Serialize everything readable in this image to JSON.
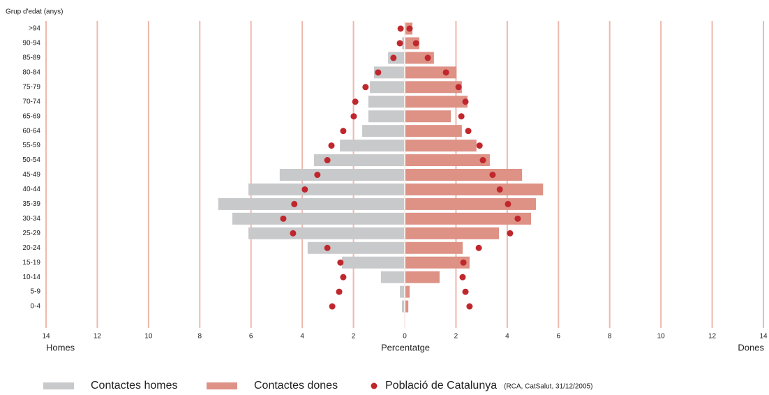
{
  "chart_data": {
    "type": "pyramid",
    "y_axis_label": "Grup d'edat (anys)",
    "x_axis_label": "Percentatge",
    "left_label": "Homes",
    "right_label": "Dones",
    "note": "(RCA, CatSalut, 31/12/2005)",
    "categories": [
      ">94",
      "90-94",
      "85-89",
      "80-84",
      "75-79",
      "70-74",
      "65-69",
      "60-64",
      "55-59",
      "50-54",
      "45-49",
      "40-44",
      "35-39",
      "30-34",
      "25-29",
      "20-24",
      "15-19",
      "10-14",
      "5-9",
      "0-4"
    ],
    "series": [
      {
        "name": "Contactes homes",
        "color": "#c8c9cb",
        "mark": "bar",
        "values": [
          0,
          -0.1,
          -0.65,
          -1.2,
          -1.36,
          -1.42,
          -1.42,
          -1.66,
          -2.53,
          -3.54,
          -4.88,
          -6.1,
          -7.28,
          -6.73,
          -6.1,
          -3.79,
          -2.45,
          -0.93,
          -0.19,
          -0.11
        ]
      },
      {
        "name": "Contactes dones",
        "color": "#de9185",
        "mark": "bar",
        "values": [
          0.3,
          0.57,
          1.14,
          2.02,
          2.23,
          2.45,
          1.8,
          2.23,
          2.8,
          3.32,
          4.58,
          5.4,
          5.12,
          4.93,
          3.68,
          2.26,
          2.53,
          1.36,
          0.19,
          0.14
        ]
      },
      {
        "name": "Població de Catalunya",
        "color": "#c0272d",
        "mark": "dot",
        "values": [
          -0.16,
          -0.19,
          -0.44,
          -1.04,
          -1.53,
          -1.93,
          -1.99,
          -2.4,
          -2.86,
          -3.02,
          -3.41,
          -3.9,
          -4.31,
          -4.74,
          -4.36,
          -3.02,
          -2.51,
          -2.4,
          -2.56,
          -2.83
        ]
      },
      {
        "color": "#c0272d",
        "mark": "dot",
        "values": [
          0.19,
          0.44,
          0.9,
          1.61,
          2.1,
          2.37,
          2.21,
          2.48,
          2.92,
          3.05,
          3.43,
          3.71,
          4.03,
          4.41,
          4.11,
          2.89,
          2.29,
          2.26,
          2.37,
          2.53
        ]
      }
    ],
    "xlim": [
      -14,
      14
    ],
    "xticks": [
      {
        "value": -14,
        "label": "14"
      },
      {
        "value": -12,
        "label": "12"
      },
      {
        "value": -10,
        "label": "10"
      },
      {
        "value": -8,
        "label": "8"
      },
      {
        "value": -6,
        "label": "6"
      },
      {
        "value": -4,
        "label": "4"
      },
      {
        "value": -2,
        "label": "2"
      },
      0,
      2,
      4,
      6,
      8,
      10,
      12,
      14
    ],
    "grid": true,
    "grid_color": "#eeb9ad"
  }
}
